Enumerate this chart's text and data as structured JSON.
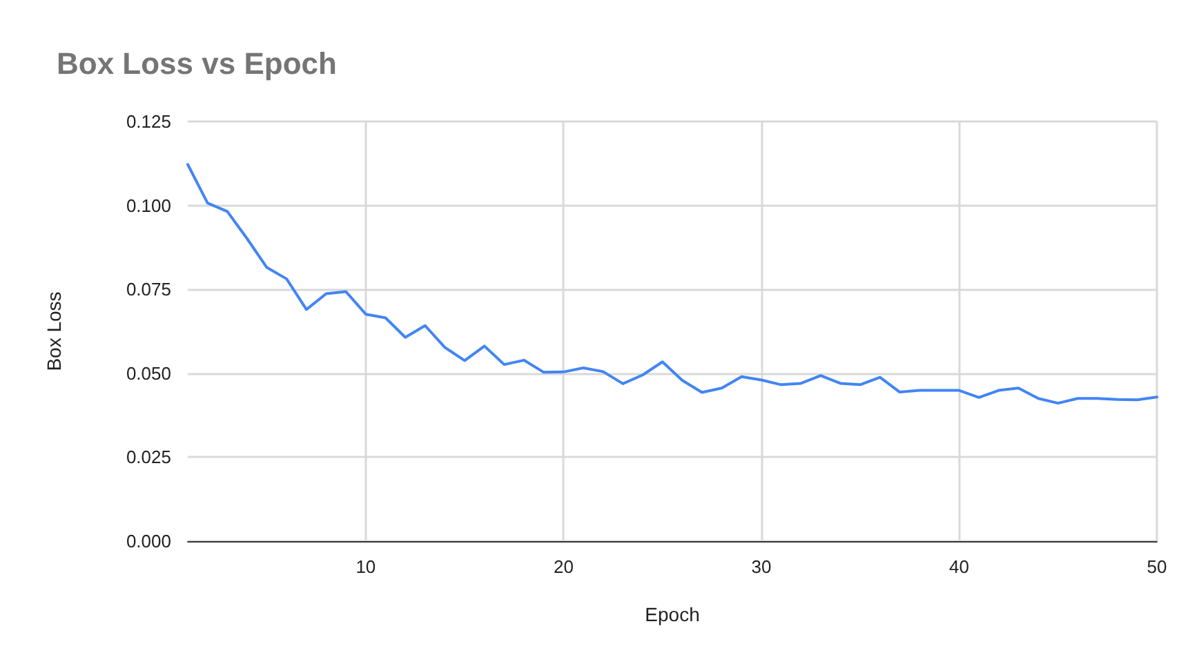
{
  "chart_data": {
    "type": "line",
    "title": "Box Loss vs Epoch",
    "xlabel": "Epoch",
    "ylabel": "Box Loss",
    "x": [
      1,
      2,
      3,
      4,
      5,
      6,
      7,
      8,
      9,
      10,
      11,
      12,
      13,
      14,
      15,
      16,
      17,
      18,
      19,
      20,
      21,
      22,
      23,
      24,
      25,
      26,
      27,
      28,
      29,
      30,
      31,
      32,
      33,
      34,
      35,
      36,
      37,
      38,
      39,
      40,
      41,
      42,
      43,
      44,
      45,
      46,
      47,
      48,
      49,
      50
    ],
    "series": [
      {
        "color": "#4285f4",
        "values": [
          0.1122,
          0.1007,
          0.0982,
          0.0901,
          0.0815,
          0.0781,
          0.069,
          0.0737,
          0.0743,
          0.0676,
          0.0665,
          0.0607,
          0.0642,
          0.0577,
          0.0538,
          0.0581,
          0.0526,
          0.0539,
          0.0503,
          0.0504,
          0.0516,
          0.0505,
          0.0469,
          0.0495,
          0.0534,
          0.0479,
          0.0443,
          0.0456,
          0.049,
          0.048,
          0.0466,
          0.047,
          0.0493,
          0.047,
          0.0466,
          0.0488,
          0.0444,
          0.0449,
          0.0449,
          0.0449,
          0.0428,
          0.0449,
          0.0456,
          0.0425,
          0.0411,
          0.0425,
          0.0425,
          0.0422,
          0.0421,
          0.0429
        ]
      }
    ],
    "xlim": [
      1,
      50
    ],
    "xticks": [
      10,
      20,
      30,
      40,
      50
    ],
    "ylim": [
      0,
      0.125
    ],
    "yticks": [
      {
        "value": 0,
        "label": "0.000"
      },
      {
        "value": 0.025,
        "label": "0.025"
      },
      {
        "value": 0.05,
        "label": "0.050"
      },
      {
        "value": 0.075,
        "label": "0.075"
      },
      {
        "value": 0.1,
        "label": "0.100"
      },
      {
        "value": 0.125,
        "label": "0.125"
      }
    ],
    "grid": true,
    "marker": "none",
    "line_style": "solid"
  }
}
